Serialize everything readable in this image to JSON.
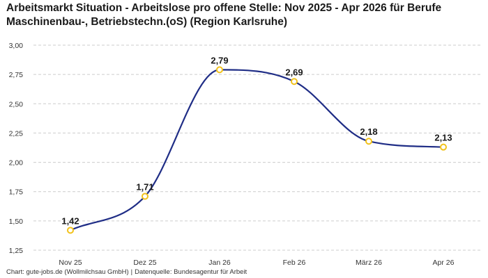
{
  "page": {
    "title": "Arbeitsmarkt Situation - Arbeitslose pro offene Stelle: Nov 2025 - Apr 2026 für Berufe Maschinenbau-, Betriebstechn.(oS) (Region Karlsruhe)",
    "footer_chart": "Chart: gute-jobs.de (Wollmilchsau GmbH)",
    "footer_source": "Datenquelle: Bundesagentur für Arbeit",
    "footer_separator": "|"
  },
  "colors": {
    "line": "#1f2d86",
    "marker_stroke": "#f2c21b",
    "marker_fill": "#ffffff",
    "grid": "#cccccc"
  },
  "chart_data": {
    "type": "line",
    "title": "Arbeitsmarkt Situation - Arbeitslose pro offene Stelle: Nov 2025 - Apr 2026 für Berufe Maschinenbau-, Betriebstechn.(oS) (Region Karlsruhe)",
    "xlabel": "",
    "ylabel": "",
    "categories": [
      "Nov 25",
      "Dez 25",
      "Jan 26",
      "Feb 26",
      "März 26",
      "Apr 26"
    ],
    "series": [
      {
        "values": [
          1.42,
          1.71,
          2.79,
          2.69,
          2.18,
          2.13
        ],
        "labels": [
          "1,42",
          "1,71",
          "2,79",
          "2,69",
          "2,18",
          "2,13"
        ]
      }
    ],
    "ylim": [
      1.25,
      3.0
    ],
    "yticks": [
      1.25,
      1.5,
      1.75,
      2.0,
      2.25,
      2.5,
      2.75,
      3.0
    ],
    "ytick_labels": [
      "1,25",
      "1,50",
      "1,75",
      "2,00",
      "2,25",
      "2,50",
      "2,75",
      "3,00"
    ],
    "grid": "horizontal dashed",
    "legend": "none",
    "smooth": true
  }
}
